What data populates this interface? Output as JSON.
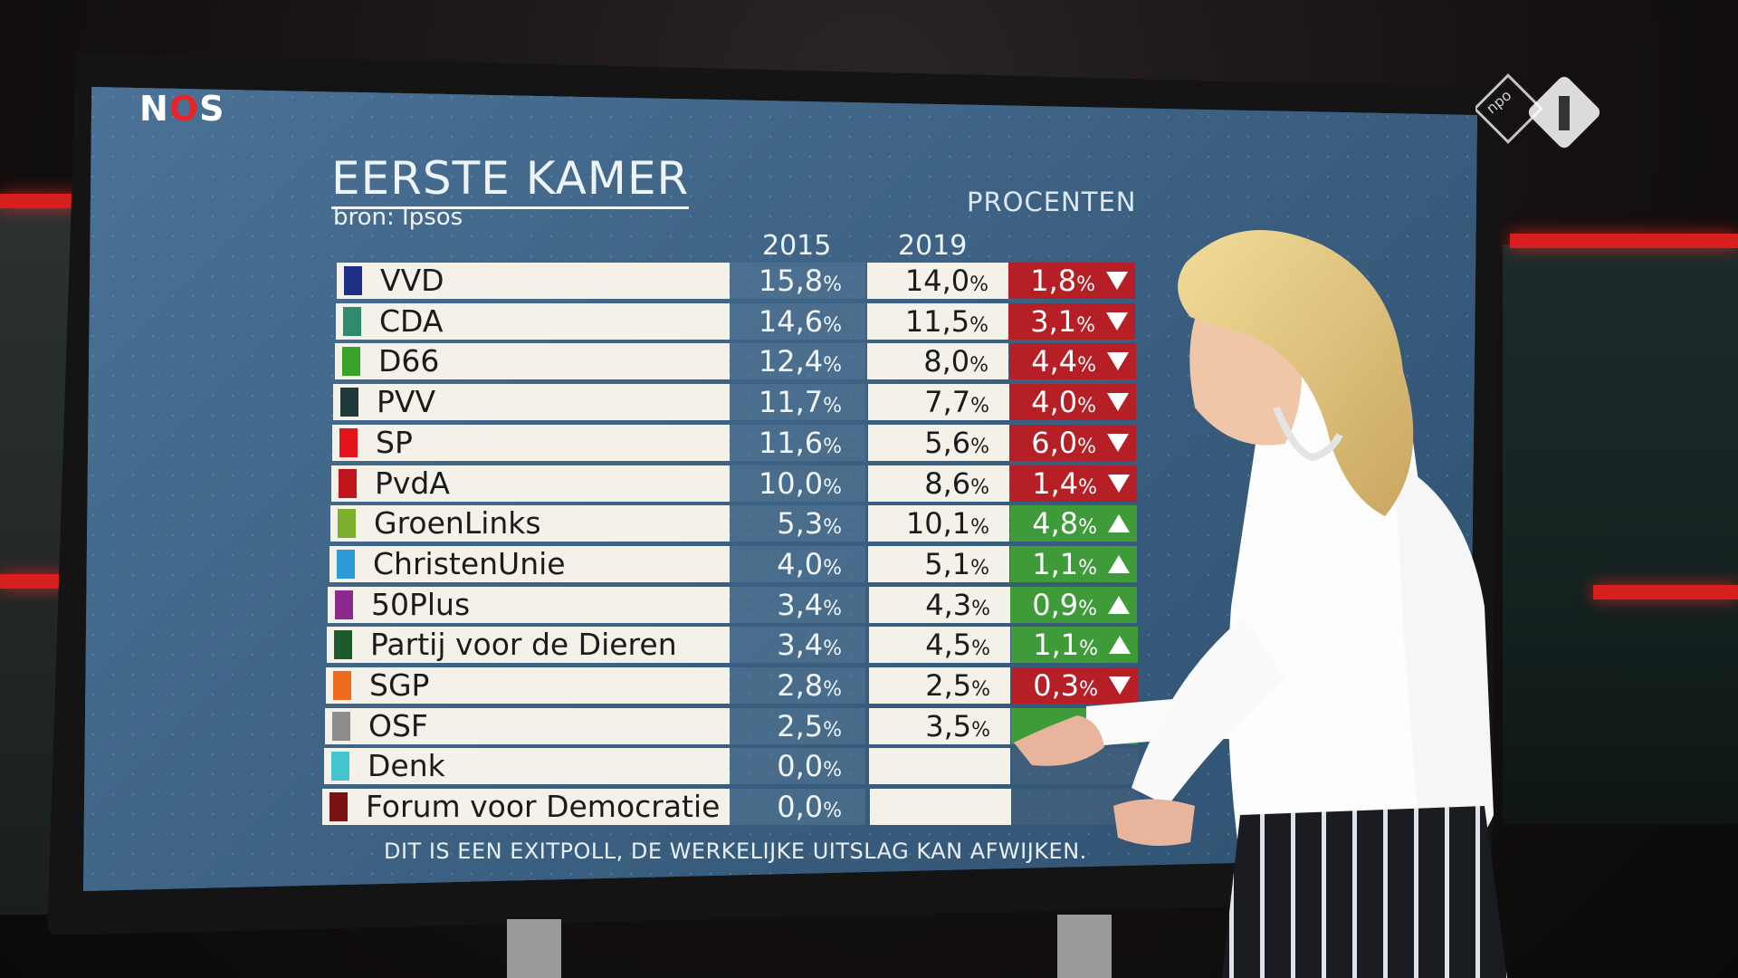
{
  "broadcaster": {
    "logo_text_n": "N",
    "logo_text_o": "O",
    "logo_text_s": "S",
    "channel_logo": "npo-1-logo"
  },
  "graphic": {
    "title": "EERSTE KAMER",
    "source": "bron: Ipsos",
    "unit_label": "PROCENTEN",
    "col_2015": "2015",
    "col_2019": "2019",
    "footer": "DIT IS EEN EXITPOLL, DE WERKELIJKE UITSLAG KAN AFWIJKEN.",
    "rows": [
      {
        "party": "VVD",
        "color": "#1f2f86",
        "v2015": "15,8",
        "v2019": "14,0",
        "diff": "1,8",
        "dir": "down"
      },
      {
        "party": "CDA",
        "color": "#2f8a6e",
        "v2015": "14,6",
        "v2019": "11,5",
        "diff": "3,1",
        "dir": "down"
      },
      {
        "party": "D66",
        "color": "#38a32a",
        "v2015": "12,4",
        "v2019": "8,0",
        "diff": "4,4",
        "dir": "down"
      },
      {
        "party": "PVV",
        "color": "#203a3a",
        "v2015": "11,7",
        "v2019": "7,7",
        "diff": "4,0",
        "dir": "down"
      },
      {
        "party": "SP",
        "color": "#e3141b",
        "v2015": "11,6",
        "v2019": "5,6",
        "diff": "6,0",
        "dir": "down"
      },
      {
        "party": "PvdA",
        "color": "#c0141b",
        "v2015": "10,0",
        "v2019": "8,6",
        "diff": "1,4",
        "dir": "down"
      },
      {
        "party": "GroenLinks",
        "color": "#7db12b",
        "v2015": "5,3",
        "v2019": "10,1",
        "diff": "4,8",
        "dir": "up"
      },
      {
        "party": "ChristenUnie",
        "color": "#2d9ad8",
        "v2015": "4,0",
        "v2019": "5,1",
        "diff": "1,1",
        "dir": "up"
      },
      {
        "party": "50Plus",
        "color": "#8b2a8c",
        "v2015": "3,4",
        "v2019": "4,3",
        "diff": "0,9",
        "dir": "up"
      },
      {
        "party": "Partij voor de Dieren",
        "color": "#1d5a2c",
        "v2015": "3,4",
        "v2019": "4,5",
        "diff": "1,1",
        "dir": "up"
      },
      {
        "party": "SGP",
        "color": "#ee6a1c",
        "v2015": "2,8",
        "v2019": "2,5",
        "diff": "0,3",
        "dir": "down"
      },
      {
        "party": "OSF",
        "color": "#8c8c8c",
        "v2015": "2,5",
        "v2019": "3,5",
        "diff": "",
        "dir": "up"
      },
      {
        "party": "Denk",
        "color": "#45c4cf",
        "v2015": "0,0",
        "v2019": "",
        "diff": "",
        "dir": "none"
      },
      {
        "party": "Forum voor Democratie",
        "color": "#7a1414",
        "v2015": "0,0",
        "v2019": "",
        "diff": "",
        "dir": "none"
      }
    ]
  }
}
